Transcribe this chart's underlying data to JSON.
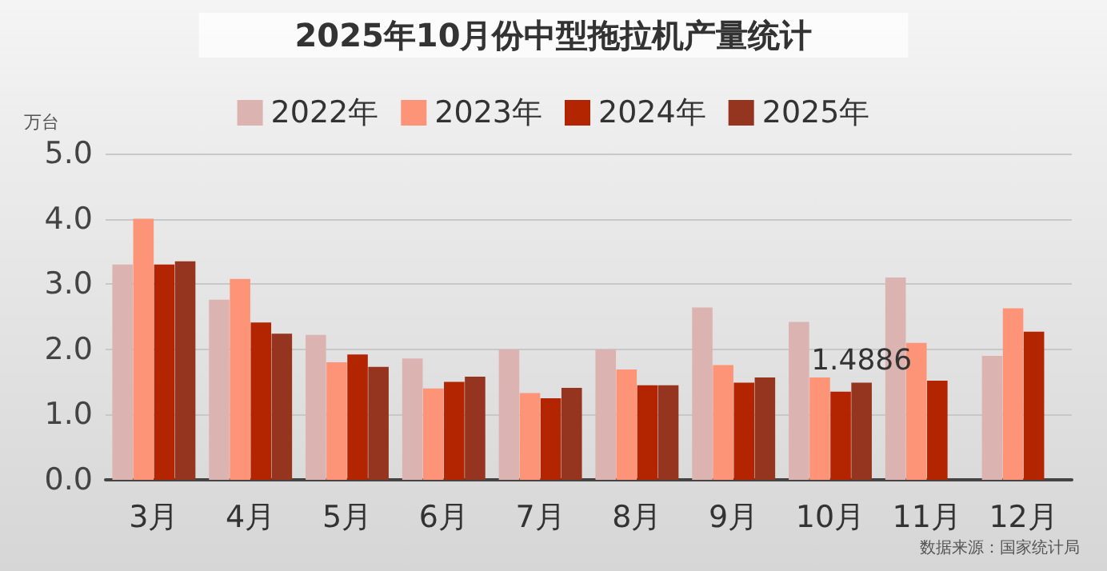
{
  "chart_data": {
    "type": "bar",
    "title": "2025年10月份中型拖拉机产量统计",
    "ylabel": "万台",
    "categories": [
      "3月",
      "4月",
      "5月",
      "6月",
      "7月",
      "8月",
      "9月",
      "10月",
      "11月",
      "12月"
    ],
    "series": [
      {
        "name": "2022年",
        "color": "#dbb3b1",
        "values": [
          3.3,
          2.76,
          2.22,
          1.86,
          2.0,
          2.0,
          2.64,
          2.42,
          3.1,
          1.9
        ]
      },
      {
        "name": "2023年",
        "color": "#fe9477",
        "values": [
          4.0,
          3.08,
          1.8,
          1.4,
          1.33,
          1.69,
          1.76,
          1.57,
          2.1,
          2.63
        ]
      },
      {
        "name": "2024年",
        "color": "#b32400",
        "values": [
          3.3,
          2.41,
          1.92,
          1.5,
          1.25,
          1.45,
          1.49,
          1.35,
          1.52,
          2.27
        ]
      },
      {
        "name": "2025年",
        "color": "#96351f",
        "values": [
          3.35,
          2.24,
          1.73,
          1.58,
          1.41,
          1.45,
          1.57,
          1.4886,
          null,
          null
        ],
        "value_labels": [
          null,
          null,
          null,
          null,
          null,
          null,
          null,
          "1.4886",
          null,
          null
        ]
      }
    ],
    "ylim": [
      0,
      5
    ],
    "yticks": [
      {
        "value": 0,
        "label": "0.0"
      },
      {
        "value": 1,
        "label": "1.0"
      },
      {
        "value": 2,
        "label": "2.0"
      },
      {
        "value": 3,
        "label": "3.0"
      },
      {
        "value": 4,
        "label": "4.0"
      },
      {
        "value": 5,
        "label": "5.0"
      }
    ],
    "grid": "y",
    "legend": "top",
    "annotations": [
      "数据来源：国家统计局"
    ]
  }
}
